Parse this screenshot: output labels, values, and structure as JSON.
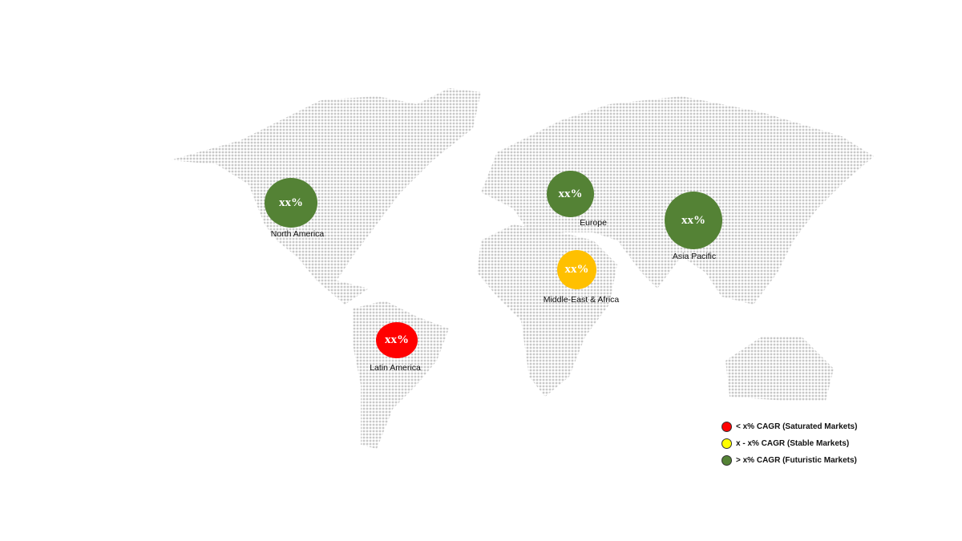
{
  "regions": [
    {
      "name": "North America",
      "value": "xx%",
      "color": "#548235"
    },
    {
      "name": "Europe",
      "value": "xx%",
      "color": "#548235"
    },
    {
      "name": "Asia Pacific",
      "value": "xx%",
      "color": "#548235"
    },
    {
      "name": "Middle-East & Africa",
      "value": "xx%",
      "color": "#FFC000"
    },
    {
      "name": "Latin America",
      "value": "xx%",
      "color": "#FF0000"
    }
  ],
  "legend": [
    {
      "label": "< x% CAGR (Saturated Markets)",
      "color": "#FF0000"
    },
    {
      "label": "x - x% CAGR (Stable Markets)",
      "color": "#FFFF00"
    },
    {
      "label": "> x% CAGR (Futuristic Markets)",
      "color": "#548235"
    }
  ],
  "map_style": "dotted world map",
  "dot_color": "#c8c8c8"
}
